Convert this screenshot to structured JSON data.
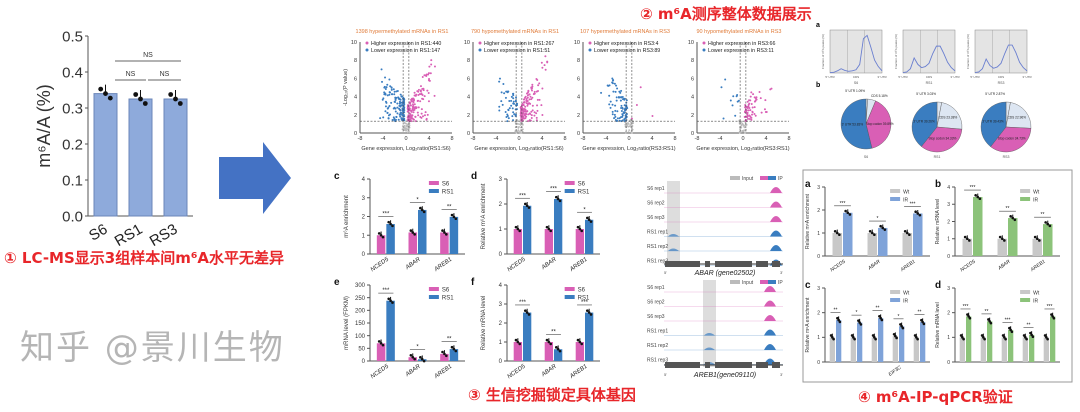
{
  "captions": {
    "step1": "① LC-MS显示3组样本间m⁶A水平无差异",
    "step2": "② m⁶A测序整体数据展示",
    "step3": "③ 生信挖掘锁定具体基因",
    "step4": "④ m⁶A-IP-qPCR验证"
  },
  "watermark": "知乎 @景川生物",
  "colors": {
    "caption": "#e8262a",
    "arrow": "#4472c4",
    "lcms_bar": "#8eaadb",
    "pink": "#d95fb5",
    "blue": "#3a7dc0",
    "grey": "#c8c8c8",
    "lightblue": "#7fa3d9",
    "green": "#8cc37a",
    "volcano_title": "#e07b39"
  },
  "chart_data": [
    {
      "id": "lcms",
      "type": "bar",
      "categories": [
        "S6",
        "RS1",
        "RS3"
      ],
      "series": [
        {
          "values": [
            0.34,
            0.325,
            0.325
          ]
        }
      ],
      "ylabel": "m⁶A/A (%)",
      "ylim": [
        0,
        0.5
      ],
      "yticks": [
        "0.0",
        "0.1",
        "0.2",
        "0.3",
        "0.4",
        "0.5"
      ],
      "annotations": [
        "NS",
        "NS",
        "NS"
      ]
    },
    {
      "id": "volcano",
      "type": "scatter",
      "xlim": [
        -8,
        8
      ],
      "ylim": [
        0,
        10
      ],
      "xticks": [
        "-8",
        "-4",
        "0",
        "4",
        "8"
      ],
      "yticks": [
        "0",
        "2",
        "4",
        "6",
        "8",
        "10"
      ],
      "ylabel": "-Log₁₀(P value)",
      "panels": [
        {
          "title": "1398 hypermethylated mRNAs in RS1",
          "higher": "Higher expression in RS1:440",
          "lower": "Lower expression in RS1:147",
          "xlabel": "Gene expression, Log₂ratio(RS1:S6)"
        },
        {
          "title": "790 hypomethylated mRNAs in RS1",
          "higher": "Higher expression in RS1:267",
          "lower": "Lower expression in RS1:51",
          "xlabel": "Gene expression, Log₂ratio(RS1:S6)"
        },
        {
          "title": "107 hypermethylated mRNAs in RS3",
          "higher": "Higher expression in RS3:4",
          "lower": "Lower expression in RS3:89",
          "xlabel": "Gene expression, Log₂ratio(RS3:RS1)"
        },
        {
          "title": "90 hypomethylated mRNAs in RS3",
          "higher": "Higher expression in RS3:66",
          "lower": "Lower expression in RS3:11",
          "xlabel": "Gene expression, Log₂ratio(RS3:RS1)"
        }
      ]
    },
    {
      "id": "profile",
      "type": "line",
      "panel_label": "a",
      "ylabel": "Fraction of m⁶A peaks (%)",
      "regions": [
        "5' UTR",
        "CDS",
        "3' UTR"
      ],
      "samples": [
        {
          "name": "S6",
          "values": [
            0.02,
            0.03,
            0.1,
            0.2,
            0.12,
            0.08,
            0.1,
            0.15,
            0.4,
            1.6,
            1.75,
            1.2,
            0.6,
            0.3,
            0.1
          ]
        },
        {
          "name": "RS1",
          "values": [
            0.02,
            0.05,
            0.2,
            0.7,
            0.4,
            0.25,
            0.3,
            0.45,
            0.9,
            1.25,
            1.25,
            0.9,
            0.5,
            0.25,
            0.1
          ]
        },
        {
          "name": "RS3",
          "values": [
            0.02,
            0.05,
            0.2,
            0.65,
            0.35,
            0.22,
            0.28,
            0.45,
            0.9,
            1.3,
            1.3,
            0.95,
            0.5,
            0.25,
            0.1
          ]
        }
      ]
    },
    {
      "id": "pies",
      "type": "pie",
      "panel_label": "b",
      "samples": [
        {
          "name": "S6",
          "slices": [
            {
              "label": "5' UTR",
              "value": 1.09
            },
            {
              "label": "CDS",
              "value": 5.18
            },
            {
              "label": "Stop codon",
              "value": 39.89
            },
            {
              "label": "3' UTR",
              "value": 53.83
            }
          ]
        },
        {
          "name": "RS1",
          "slices": [
            {
              "label": "5' UTR",
              "value": 3.03
            },
            {
              "label": "CDS",
              "value": 23.38
            },
            {
              "label": "Stop codon",
              "value": 34.33
            },
            {
              "label": "3' UTR",
              "value": 39.26
            }
          ]
        },
        {
          "name": "RS3",
          "slices": [
            {
              "label": "5' UTR",
              "value": 2.87
            },
            {
              "label": "CDS",
              "value": 22.96
            },
            {
              "label": "Stop codon",
              "value": 34.73
            },
            {
              "label": "3' UTR",
              "value": 39.43
            }
          ]
        }
      ]
    },
    {
      "id": "c",
      "type": "bar",
      "panel_label": "c",
      "categories": [
        "NCED5",
        "ABAR",
        "AREB1"
      ],
      "series": [
        {
          "name": "S6",
          "values": [
            1.0,
            1.15,
            1.15
          ]
        },
        {
          "name": "RS1",
          "values": [
            1.6,
            2.35,
            1.98
          ]
        }
      ],
      "ylabel": "m⁶A enrichment",
      "ylim": [
        0,
        4
      ],
      "yticks": [
        "0",
        "1",
        "2",
        "3",
        "4"
      ],
      "significance": [
        "***",
        "*",
        "**"
      ]
    },
    {
      "id": "d",
      "type": "bar",
      "panel_label": "d",
      "categories": [
        "NCED5",
        "ABAR",
        "AREB1"
      ],
      "series": [
        {
          "name": "S6",
          "values": [
            1.0,
            1.0,
            1.0
          ]
        },
        {
          "name": "RS1",
          "values": [
            1.93,
            2.2,
            1.37
          ]
        }
      ],
      "ylabel": "Relative m⁶A enrichment",
      "ylim": [
        0,
        3
      ],
      "yticks": [
        "0",
        "1",
        "2",
        "3"
      ],
      "significance": [
        "***",
        "***",
        "*"
      ]
    },
    {
      "id": "e",
      "type": "bar",
      "panel_label": "e",
      "categories": [
        "NCED5",
        "ABAR",
        "AREB1"
      ],
      "series": [
        {
          "name": "S6",
          "values": [
            70,
            15,
            28
          ]
        },
        {
          "name": "RS1",
          "values": [
            238,
            7,
            47
          ]
        }
      ],
      "ylabel": "mRNA level (FPKM)",
      "ylim": [
        0,
        300
      ],
      "yticks": [
        "0",
        "50",
        "100",
        "150",
        "200",
        "250",
        "300"
      ],
      "significance": [
        "***",
        "*",
        "**"
      ]
    },
    {
      "id": "f",
      "type": "bar",
      "panel_label": "f",
      "categories": [
        "NCED5",
        "ABAR",
        "AREB1"
      ],
      "series": [
        {
          "name": "S6",
          "values": [
            1.0,
            1.0,
            1.0
          ]
        },
        {
          "name": "RS1",
          "values": [
            2.55,
            0.62,
            2.55
          ]
        }
      ],
      "ylabel": "Relative mRNA level",
      "ylim": [
        0,
        4
      ],
      "yticks": [
        "0",
        "1",
        "2",
        "3",
        "4"
      ],
      "significance": [
        "***",
        "**",
        "***"
      ]
    },
    {
      "id": "va",
      "type": "bar",
      "panel_label": "a",
      "categories": [
        "NCED5",
        "ABAR",
        "AREB1"
      ],
      "series": [
        {
          "name": "Wt",
          "values": [
            1.0,
            1.0,
            1.0
          ]
        },
        {
          "name": "IR",
          "values": [
            1.88,
            1.22,
            1.85
          ]
        }
      ],
      "ylabel": "Relative m⁶A enrichment",
      "ylim": [
        0,
        3
      ],
      "yticks": [
        "0",
        "1",
        "2",
        "3"
      ],
      "significance": [
        "***",
        "*",
        "***"
      ]
    },
    {
      "id": "vb",
      "type": "bar",
      "panel_label": "b",
      "categories": [
        "NCED5",
        "ABAR",
        "AREB1"
      ],
      "series": [
        {
          "name": "Wt",
          "values": [
            1.0,
            1.0,
            1.0
          ]
        },
        {
          "name": "IR",
          "values": [
            3.42,
            2.2,
            1.85
          ]
        }
      ],
      "ylabel": "Relative mRNA level",
      "ylim": [
        0,
        4
      ],
      "yticks": [
        "0",
        "1",
        "2",
        "3",
        "4"
      ],
      "significance": [
        "***",
        "**",
        "**"
      ]
    },
    {
      "id": "vc",
      "type": "bar",
      "panel_label": "c",
      "categories": [
        "",
        "",
        "",
        "EIF3C",
        ""
      ],
      "series": [
        {
          "name": "Wt",
          "values": [
            1.0,
            1.0,
            1.0,
            1.05,
            1.0
          ]
        },
        {
          "name": "IR",
          "values": [
            1.7,
            1.6,
            1.78,
            1.45,
            1.62
          ]
        }
      ],
      "ylabel": "Relative m⁶A enrichment",
      "ylim": [
        0,
        3
      ],
      "yticks": [
        "0",
        "1",
        "2",
        "3"
      ],
      "significance": [
        "**",
        "*",
        "**",
        "*",
        "**"
      ]
    },
    {
      "id": "vd",
      "type": "bar",
      "panel_label": "d",
      "categories": [
        "",
        "",
        "",
        "",
        ""
      ],
      "series": [
        {
          "name": "Wt",
          "values": [
            1.0,
            1.0,
            1.0,
            1.0,
            1.0
          ]
        },
        {
          "name": "IR",
          "values": [
            1.85,
            1.65,
            1.3,
            1.1,
            1.85
          ]
        }
      ],
      "ylabel": "Relative mRNA level",
      "ylim": [
        0,
        3
      ],
      "yticks": [
        "0",
        "1",
        "2",
        "3"
      ],
      "significance": [
        "***",
        "**",
        "***",
        "**",
        "***"
      ]
    }
  ],
  "tracks": {
    "legend_input": "Input",
    "legend_ip": "IP",
    "rows": [
      "S6 rep1",
      "S6 rep2",
      "S6 rep3",
      "RS1 rep1",
      "RS1 rep2",
      "RS1 rep3"
    ],
    "genes": [
      {
        "name": "ABAR (gene02502)",
        "five": "5'",
        "three": "3'"
      },
      {
        "name": "AREB1(gene09110)",
        "five": "5'",
        "three": "3'"
      }
    ]
  }
}
